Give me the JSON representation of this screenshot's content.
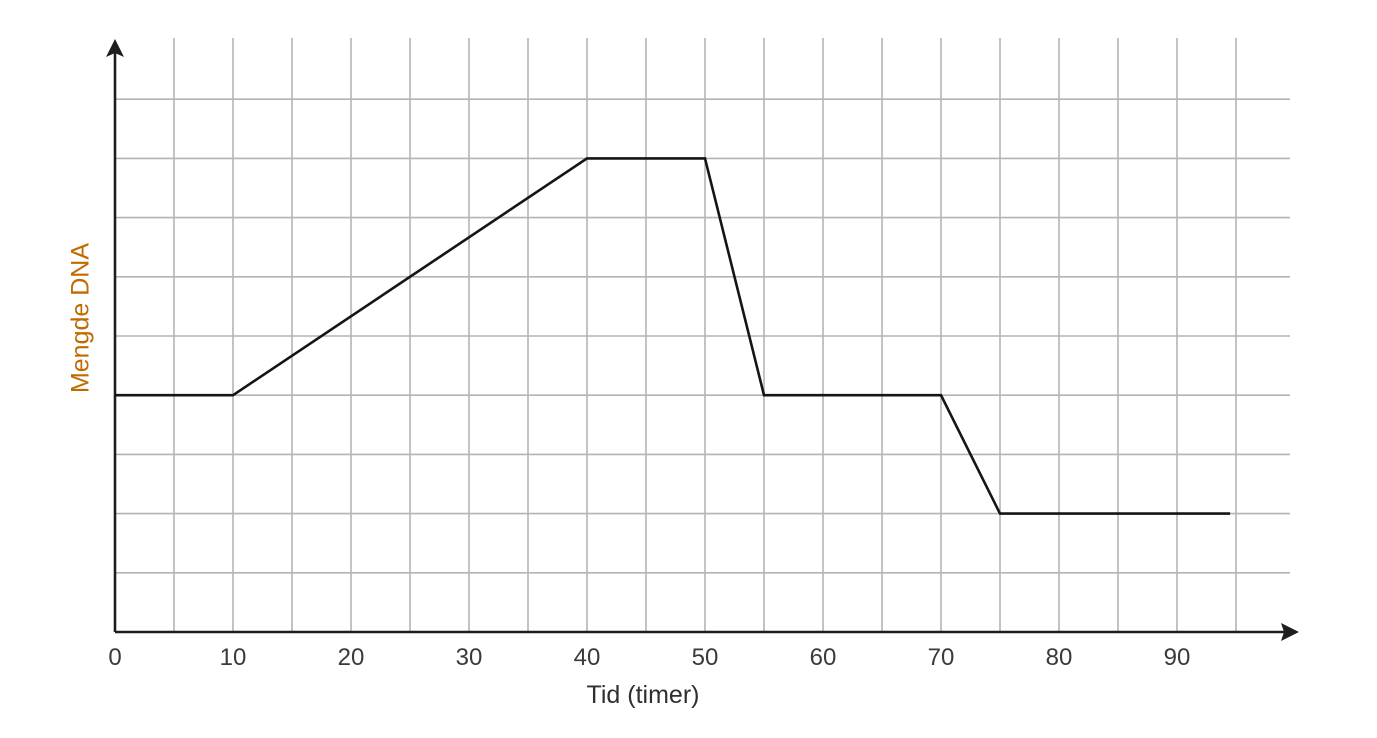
{
  "chart_data": {
    "type": "line",
    "xlabel": "Tid (timer)",
    "ylabel": "Mengde DNA",
    "xlim": [
      0,
      100
    ],
    "ylim": [
      0,
      10
    ],
    "x_ticks": [
      0,
      10,
      20,
      30,
      40,
      50,
      60,
      70,
      80,
      90
    ],
    "grid": true,
    "y_tick_labels_shown": false,
    "series": [
      {
        "x": [
          0,
          10,
          40,
          50,
          55,
          70,
          75,
          94.5
        ],
        "y": [
          4,
          4,
          8,
          8,
          4,
          4,
          2,
          2
        ]
      }
    ]
  },
  "colors": {
    "ylabel": "#c06a00",
    "grid": "#b4b4b4",
    "line": "#151515",
    "axis": "#1e1e1e"
  }
}
